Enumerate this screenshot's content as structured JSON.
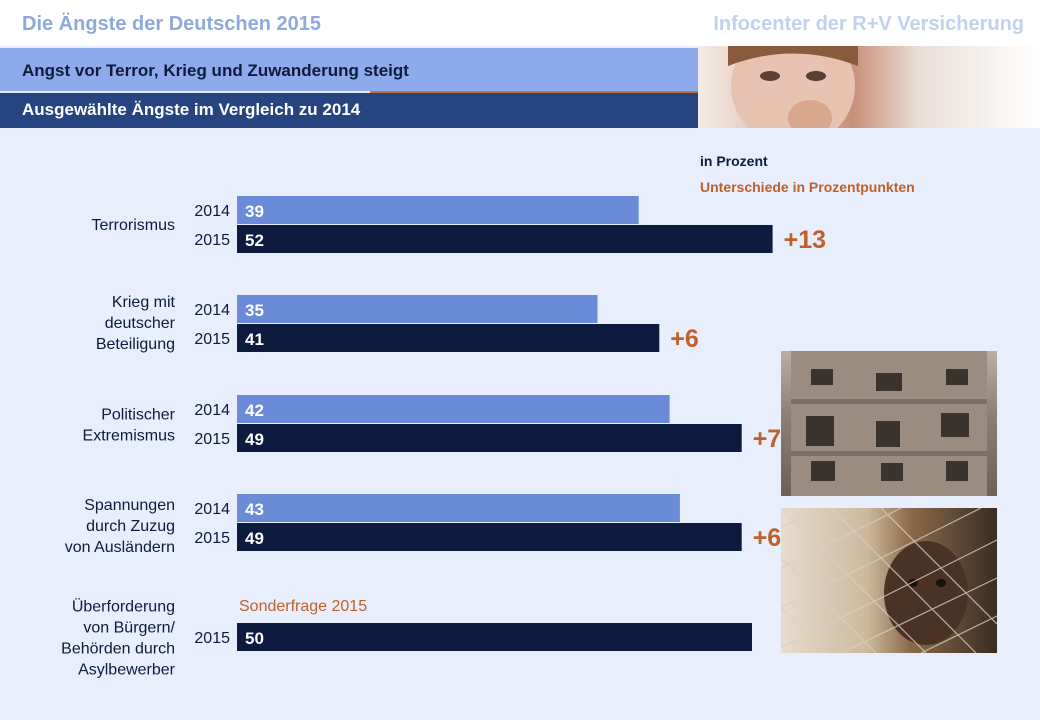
{
  "header": {
    "title": "Die Ängste der Deutschen 2015",
    "source": "Infocenter der R+V Versicherung"
  },
  "subheader": {
    "headline": "Angst vor Terror, Krieg und Zuwanderung steigt",
    "subline": "Ausgewählte Ängste im Vergleich zu 2014"
  },
  "legend": {
    "unit": "in Prozent",
    "difference": "Unterschiede in Prozentpunkten"
  },
  "colors": {
    "bar_2014": "#6a8bd8",
    "bar_2015": "#0c1b3e",
    "difference": "#c0602a"
  },
  "chart_data": {
    "type": "bar",
    "orientation": "horizontal",
    "title": "Die Ängste der Deutschen 2015",
    "xlabel": "",
    "ylabel": "",
    "xlim": [
      0,
      100
    ],
    "grid": false,
    "categories": [
      "Terrorismus",
      "Krieg mit deutscher Beteiligung",
      "Politischer Extremismus",
      "Spannungen durch Zuzug von Ausländern",
      "Überforderung von Bürgern/ Behörden durch Asylbewerber"
    ],
    "category_lines": [
      [
        "Terrorismus"
      ],
      [
        "Krieg mit",
        "deutscher",
        "Beteiligung"
      ],
      [
        "Politischer",
        "Extremismus"
      ],
      [
        "Spannungen",
        "durch Zuzug",
        "von Ausländern"
      ],
      [
        "Überforderung",
        "von Bürgern/",
        "Behörden durch",
        "Asylbewerber"
      ]
    ],
    "series": [
      {
        "name": "2014",
        "values": [
          39,
          35,
          42,
          43,
          null
        ]
      },
      {
        "name": "2015",
        "values": [
          52,
          41,
          49,
          49,
          50
        ]
      }
    ],
    "differences": [
      "+13",
      "+6",
      "+7",
      "+6",
      ""
    ],
    "annotations": [
      "",
      "",
      "",
      "",
      "Sonderfrage 2015"
    ]
  }
}
